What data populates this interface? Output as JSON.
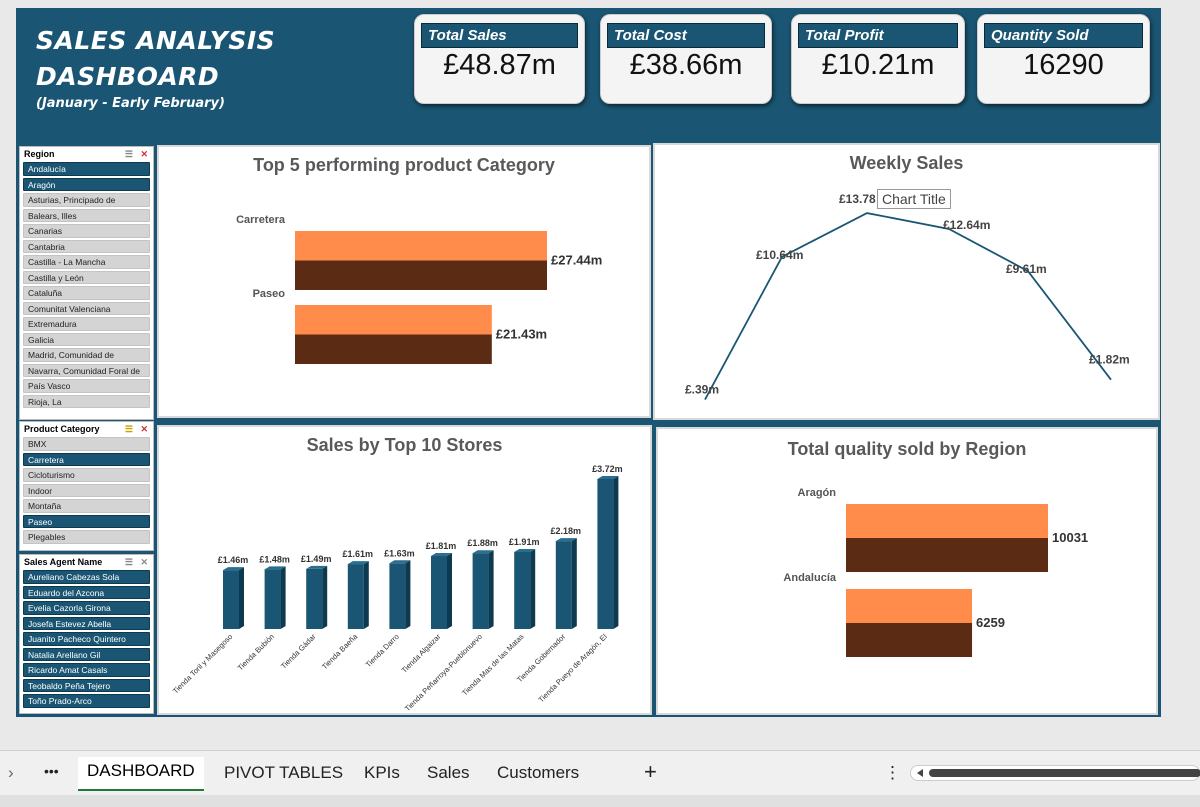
{
  "header": {
    "title_line1": "SALES ANALYSIS",
    "title_line2": "DASHBOARD",
    "subtitle": "(January - Early February)"
  },
  "kpis": [
    {
      "label": "Total Sales",
      "value": "£48.87m"
    },
    {
      "label": "Total Cost",
      "value": "£38.66m"
    },
    {
      "label": "Total Profit",
      "value": "£10.21m"
    },
    {
      "label": "Quantity Sold",
      "value": "16290"
    }
  ],
  "slicers": {
    "region": {
      "title": "Region",
      "items": [
        {
          "label": "Andalucía",
          "selected": true
        },
        {
          "label": "Aragón",
          "selected": true
        },
        {
          "label": "Asturias, Principado de",
          "selected": false
        },
        {
          "label": "Balears, Illes",
          "selected": false
        },
        {
          "label": "Canarias",
          "selected": false
        },
        {
          "label": "Cantabria",
          "selected": false
        },
        {
          "label": "Castilla - La Mancha",
          "selected": false
        },
        {
          "label": "Castilla y León",
          "selected": false
        },
        {
          "label": "Cataluña",
          "selected": false
        },
        {
          "label": "Comunitat Valenciana",
          "selected": false
        },
        {
          "label": "Extremadura",
          "selected": false
        },
        {
          "label": "Galicia",
          "selected": false
        },
        {
          "label": "Madrid, Comunidad de",
          "selected": false
        },
        {
          "label": "Navarra, Comunidad Foral de",
          "selected": false
        },
        {
          "label": "País Vasco",
          "selected": false
        },
        {
          "label": "Rioja, La",
          "selected": false
        }
      ]
    },
    "category": {
      "title": "Product Category",
      "items": [
        {
          "label": "BMX",
          "selected": false
        },
        {
          "label": "Carretera",
          "selected": true
        },
        {
          "label": "Cicloturismo",
          "selected": false
        },
        {
          "label": "Indoor",
          "selected": false
        },
        {
          "label": "Montaña",
          "selected": false
        },
        {
          "label": "Paseo",
          "selected": true
        },
        {
          "label": "Plegables",
          "selected": false
        }
      ]
    },
    "agent": {
      "title": "Sales Agent Name",
      "items": [
        {
          "label": "Aureliano Cabezas Sola",
          "selected": true
        },
        {
          "label": "Eduardo del Azcona",
          "selected": true
        },
        {
          "label": "Evelia Cazorla Girona",
          "selected": true
        },
        {
          "label": "Josefa Estevez Abella",
          "selected": true
        },
        {
          "label": "Juanito Pacheco Quintero",
          "selected": true
        },
        {
          "label": "Natalia Arellano Gil",
          "selected": true
        },
        {
          "label": "Ricardo Amat Casals",
          "selected": true
        },
        {
          "label": "Teobaldo Peña Tejero",
          "selected": true
        },
        {
          "label": "Toño Prado-Arco",
          "selected": true
        }
      ]
    }
  },
  "chart_data": [
    {
      "id": "top5",
      "type": "bar",
      "orientation": "horizontal",
      "title": "Top 5 performing product Category",
      "categories": [
        "Carretera",
        "Paseo"
      ],
      "values": [
        27.44,
        21.43
      ],
      "data_labels": [
        "£27.44m",
        "£21.43m"
      ],
      "colors": [
        "#ff8c4b",
        "#5c2b14"
      ]
    },
    {
      "id": "weekly",
      "type": "line",
      "title": "Weekly Sales",
      "tooltip": "Chart Title",
      "values": [
        0.39,
        10.64,
        13.78,
        12.64,
        9.61,
        1.82
      ],
      "data_labels": [
        "£.39m",
        "£10.64m",
        "£13.78",
        "£12.64m",
        "£9.61m",
        "£1.82m"
      ],
      "color": "#1a5673"
    },
    {
      "id": "stores",
      "type": "bar",
      "title": "Sales by Top 10 Stores",
      "categories": [
        "Tienda Toril y Masegoso",
        "Tienda Bubión",
        "Tienda Gádar",
        "Tienda Baeña",
        "Tienda Darro",
        "Tienda Algaizar",
        "Tienda Peñarroya-Pueblonuevo",
        "Tienda Mas de las Matas",
        "Tienda Gobernador",
        "Tienda Pueyo de Aragón, El"
      ],
      "values": [
        1.46,
        1.48,
        1.49,
        1.61,
        1.63,
        1.81,
        1.88,
        1.91,
        2.18,
        3.72
      ],
      "data_labels": [
        "£1.46m",
        "£1.48m",
        "£1.49m",
        "£1.61m",
        "£1.63m",
        "£1.81m",
        "£1.88m",
        "£1.91m",
        "£2.18m",
        "£3.72m"
      ],
      "color": "#1a5673"
    },
    {
      "id": "region_qty",
      "type": "bar",
      "orientation": "horizontal",
      "title": "Total quality sold by Region",
      "categories": [
        "Aragón",
        "Andalucía"
      ],
      "values": [
        10031,
        6259
      ],
      "data_labels": [
        "10031",
        "6259"
      ],
      "colors": [
        "#ff8c4b",
        "#5c2b14"
      ]
    }
  ],
  "tabs": {
    "more": "•••",
    "items": [
      "DASHBOARD",
      "PIVOT TABLES",
      "KPIs",
      "Sales",
      "Customers"
    ],
    "active": "DASHBOARD",
    "add": "+",
    "options": "⋮"
  }
}
